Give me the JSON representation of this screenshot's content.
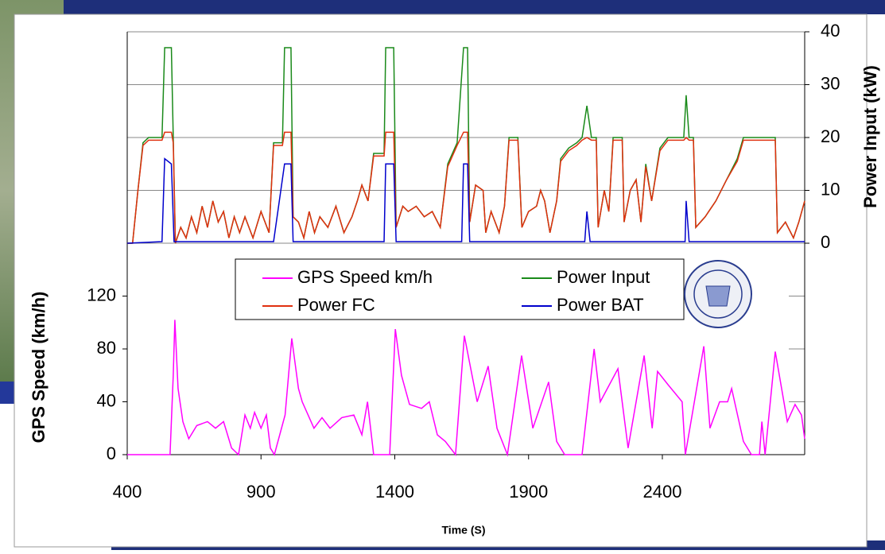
{
  "chart_data": {
    "type": "line",
    "xlabel": "Time (S)",
    "ylabel": "GPS Speed (km/h)",
    "y2label": "Power Input (kW)",
    "xlim": [
      400,
      2932
    ],
    "xticks": [
      400,
      900,
      1400,
      1900,
      2400
    ],
    "ylim": [
      0,
      320
    ],
    "yticks": [
      0,
      40,
      80,
      120
    ],
    "y2lim": [
      -40,
      40
    ],
    "y2ticks": [
      0,
      10,
      20,
      30,
      40
    ],
    "grid": true,
    "legend": "center",
    "series": [
      {
        "name": "GPS Speed km/h",
        "color": "#ff00ff",
        "axis": "y",
        "x": [
          400,
          560,
          572,
          578,
          590,
          608,
          630,
          660,
          700,
          730,
          760,
          790,
          816,
          840,
          860,
          876,
          900,
          920,
          935,
          950,
          990,
          1015,
          1040,
          1054,
          1098,
          1128,
          1158,
          1202,
          1247,
          1277,
          1298,
          1321,
          1381,
          1402,
          1425,
          1455,
          1500,
          1529,
          1559,
          1589,
          1627,
          1660,
          1708,
          1749,
          1782,
          1821,
          1874,
          1916,
          1975,
          2005,
          2035,
          2100,
          2145,
          2168,
          2234,
          2272,
          2332,
          2362,
          2382,
          2421,
          2474,
          2486,
          2555,
          2578,
          2614,
          2644,
          2659,
          2703,
          2733,
          2763,
          2772,
          2784,
          2822,
          2867,
          2896,
          2920,
          2932
        ],
        "values": [
          0,
          0,
          60,
          102,
          50,
          25,
          12,
          22,
          25,
          20,
          25,
          5,
          0,
          30,
          20,
          32,
          20,
          30,
          5,
          0,
          30,
          88,
          50,
          40,
          20,
          28,
          20,
          28,
          30,
          15,
          40,
          0,
          0,
          95,
          60,
          38,
          35,
          40,
          15,
          10,
          0,
          90,
          40,
          67,
          20,
          0,
          75,
          20,
          55,
          10,
          0,
          0,
          80,
          40,
          65,
          5,
          75,
          20,
          63,
          53,
          40,
          0,
          82,
          20,
          40,
          40,
          50,
          10,
          0,
          0,
          25,
          0,
          78,
          25,
          38,
          30,
          12
        ]
      },
      {
        "name": "Power Input",
        "color": "#1a8a1a",
        "axis": "y2",
        "x": [
          400,
          420,
          440,
          459,
          480,
          530,
          540,
          565,
          572,
          580,
          600,
          620,
          640,
          660,
          680,
          700,
          720,
          740,
          760,
          780,
          800,
          820,
          840,
          870,
          900,
          930,
          947,
          980,
          988,
          1012,
          1020,
          1040,
          1060,
          1080,
          1100,
          1120,
          1150,
          1180,
          1210,
          1240,
          1260,
          1277,
          1300,
          1321,
          1360,
          1366,
          1396,
          1405,
          1430,
          1450,
          1480,
          1510,
          1540,
          1570,
          1598,
          1633,
          1657,
          1672,
          1680,
          1702,
          1730,
          1740,
          1760,
          1790,
          1810,
          1827,
          1860,
          1875,
          1900,
          1930,
          1945,
          1960,
          1980,
          2005,
          2020,
          2050,
          2080,
          2100,
          2118,
          2135,
          2153,
          2160,
          2183,
          2200,
          2216,
          2250,
          2257,
          2280,
          2302,
          2320,
          2338,
          2360,
          2391,
          2421,
          2480,
          2489,
          2500,
          2516,
          2525,
          2560,
          2600,
          2640,
          2680,
          2703,
          2760,
          2822,
          2830,
          2860,
          2890,
          2910,
          2932
        ],
        "values": [
          0,
          0,
          10,
          19,
          20,
          20,
          37,
          37,
          20,
          0,
          3,
          1,
          5,
          2,
          7,
          3,
          8,
          4,
          6,
          1,
          5,
          2,
          5,
          1,
          6,
          2,
          19,
          19,
          37,
          37,
          5,
          4,
          1,
          6,
          2,
          5,
          3,
          7,
          2,
          5,
          8,
          11,
          8,
          17,
          17,
          37,
          37,
          3,
          7,
          6,
          7,
          5,
          6,
          3,
          15,
          19,
          37,
          37,
          4,
          11,
          10,
          2,
          6,
          2,
          7,
          20,
          20,
          3,
          6,
          7,
          10,
          8,
          2,
          8,
          16,
          18,
          19,
          20,
          26,
          20,
          20,
          3,
          10,
          6,
          20,
          20,
          4,
          10,
          12,
          4,
          15,
          8,
          18,
          20,
          20,
          28,
          20,
          20,
          3,
          5,
          8,
          12,
          16,
          20,
          20,
          20,
          2,
          4,
          1,
          4,
          8
        ]
      },
      {
        "name": "Power FC",
        "color": "#e0300f",
        "axis": "y2",
        "x": [
          400,
          420,
          440,
          459,
          480,
          530,
          540,
          565,
          572,
          580,
          600,
          620,
          640,
          660,
          680,
          700,
          720,
          740,
          760,
          780,
          800,
          820,
          840,
          870,
          900,
          930,
          947,
          980,
          988,
          1012,
          1020,
          1040,
          1060,
          1080,
          1100,
          1120,
          1150,
          1180,
          1210,
          1240,
          1260,
          1277,
          1300,
          1321,
          1360,
          1366,
          1396,
          1405,
          1430,
          1450,
          1480,
          1510,
          1540,
          1570,
          1598,
          1633,
          1657,
          1672,
          1680,
          1702,
          1730,
          1740,
          1760,
          1790,
          1810,
          1827,
          1860,
          1875,
          1900,
          1930,
          1945,
          1960,
          1980,
          2005,
          2020,
          2050,
          2080,
          2100,
          2118,
          2135,
          2153,
          2160,
          2183,
          2200,
          2216,
          2250,
          2257,
          2280,
          2302,
          2320,
          2338,
          2360,
          2391,
          2421,
          2480,
          2489,
          2500,
          2516,
          2525,
          2560,
          2600,
          2640,
          2680,
          2703,
          2760,
          2822,
          2830,
          2860,
          2890,
          2910,
          2932
        ],
        "values": [
          0,
          0,
          10,
          18.5,
          19.5,
          19.5,
          21,
          21,
          19,
          0,
          3,
          1,
          5,
          2,
          7,
          3,
          8,
          4,
          6,
          1,
          5,
          2,
          5,
          1,
          6,
          2,
          18.5,
          18.5,
          21,
          21,
          5,
          4,
          1,
          6,
          2,
          5,
          3,
          7,
          2,
          5,
          8,
          11,
          8,
          16.5,
          16.5,
          21,
          21,
          3,
          7,
          6,
          7,
          5,
          6,
          3,
          14.5,
          18.5,
          21,
          21,
          4,
          11,
          10,
          2,
          6,
          2,
          7,
          19.5,
          19.5,
          3,
          6,
          7,
          10,
          8,
          2,
          8,
          15.5,
          17.5,
          18.5,
          19.5,
          20,
          19.5,
          19.5,
          3,
          10,
          6,
          19.5,
          19.5,
          4,
          10,
          12,
          4,
          14.5,
          8,
          17.5,
          19.5,
          19.5,
          20,
          19.5,
          19.5,
          3,
          5,
          8,
          12,
          15.5,
          19.5,
          19.5,
          19.5,
          2,
          4,
          1,
          4,
          8
        ]
      },
      {
        "name": "Power BAT",
        "color": "#0000cc",
        "axis": "y2",
        "x": [
          400,
          530,
          540,
          565,
          575,
          947,
          988,
          1012,
          1020,
          1360,
          1366,
          1396,
          1405,
          1650,
          1657,
          1672,
          1680,
          2110,
          2118,
          2130,
          2485,
          2489,
          2500,
          2932
        ],
        "values": [
          0,
          0.3,
          16,
          15,
          0.3,
          0.3,
          15,
          15,
          0.3,
          0.3,
          15,
          15,
          0.3,
          0.3,
          15,
          15,
          0.3,
          0.3,
          6,
          0.3,
          0.3,
          8,
          0.3,
          0.3
        ]
      }
    ]
  }
}
